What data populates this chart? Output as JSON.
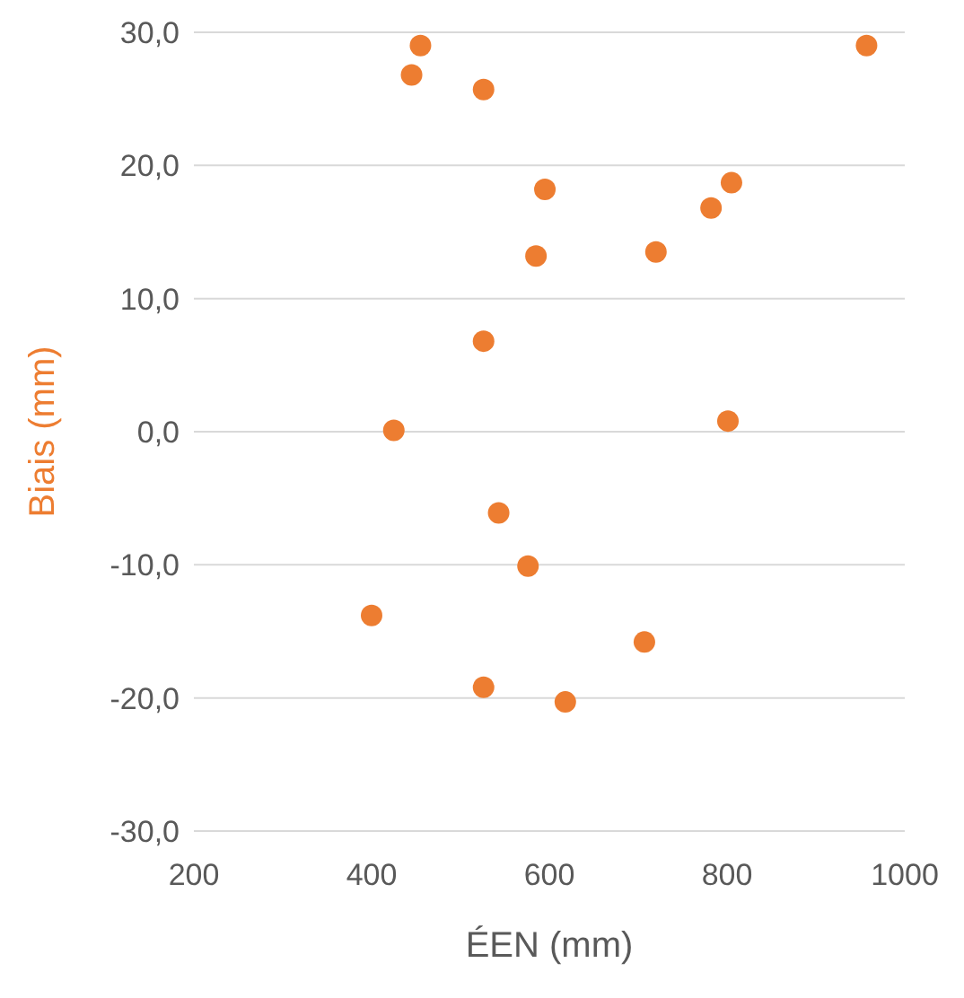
{
  "chart_data": {
    "type": "scatter",
    "xlabel": "ÉEN (mm)",
    "ylabel": "Biais (mm)",
    "x": [
      455,
      445,
      526,
      957,
      595,
      805,
      782,
      585,
      720,
      526,
      425,
      801,
      543,
      576,
      400,
      707,
      526,
      618
    ],
    "values": [
      29.0,
      26.8,
      25.7,
      29.0,
      18.2,
      18.7,
      16.8,
      13.2,
      13.5,
      6.8,
      0.1,
      0.8,
      -6.1,
      -10.1,
      -13.8,
      -15.8,
      -19.2,
      -20.3
    ],
    "color": "#ed7d31",
    "marker": "circle",
    "xlim": [
      200,
      1000
    ],
    "xticks": [
      200,
      400,
      600,
      800,
      1000
    ],
    "ylim": [
      -30,
      30
    ],
    "yticks": [
      {
        "value": -30,
        "label": "-30,0"
      },
      {
        "value": -20,
        "label": "-20,0"
      },
      {
        "value": -10,
        "label": "-10,0"
      },
      {
        "value": 0,
        "label": "0,0"
      },
      {
        "value": 10,
        "label": "10,0"
      },
      {
        "value": 20,
        "label": "20,0"
      },
      {
        "value": 30,
        "label": "30,0"
      }
    ],
    "grid": "y"
  }
}
